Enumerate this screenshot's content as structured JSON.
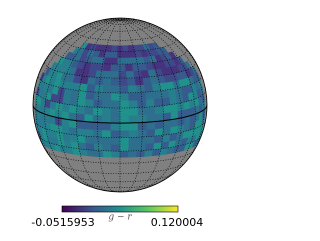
{
  "chart_data": {
    "type": "map",
    "colorbar": {
      "label": "g − r",
      "vmin": -0.0515953,
      "vmax": 0.120004
    }
  }
}
